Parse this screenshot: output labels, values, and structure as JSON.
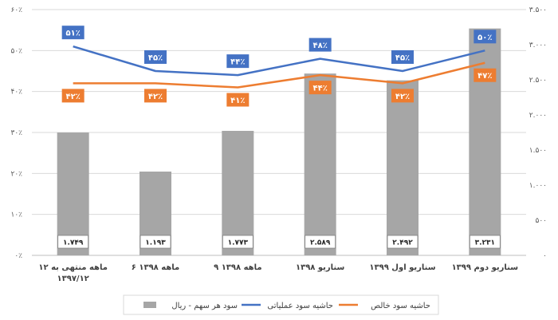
{
  "chart_data": {
    "type": "bar",
    "title": "",
    "categories": [
      "۱۲ ماهه منتهی به ۱۳۹۷/۱۲",
      "۶ ماهه ۱۳۹۸",
      "۹ ماهه ۱۳۹۸",
      "سناریو ۱۳۹۸",
      "سناریو اول ۱۳۹۹",
      "سناریو دوم ۱۳۹۹"
    ],
    "category_lines": [
      [
        "۱۲ ماهه منتهی به",
        "۱۳۹۷/۱۲"
      ],
      [
        "۶ ماهه ۱۳۹۸"
      ],
      [
        "۹ ماهه ۱۳۹۸"
      ],
      [
        "سناریو ۱۳۹۸"
      ],
      [
        "سناریو اول ۱۳۹۹"
      ],
      [
        "سناریو دوم ۱۳۹۹"
      ]
    ],
    "series": [
      {
        "name": "سود هر سهم - ریال",
        "type": "bar",
        "axis": "right",
        "color": "#a6a6a6",
        "values": [
          1749,
          1193,
          1773,
          2589,
          2492,
          3231
        ],
        "labels": [
          "۱.۷۴۹",
          "۱.۱۹۳",
          "۱.۷۷۳",
          "۲.۵۸۹",
          "۲.۴۹۲",
          "۳.۲۳۱"
        ]
      },
      {
        "name": "حاشیه سود عملیاتی",
        "type": "line",
        "axis": "left",
        "color": "#4472c4",
        "values": [
          51,
          45,
          44,
          48,
          45,
          50
        ],
        "labels": [
          "۵۱٪",
          "۴۵٪",
          "۴۴٪",
          "۴۸٪",
          "۴۵٪",
          "۵۰٪"
        ]
      },
      {
        "name": "حاشیه سود خالص",
        "type": "line",
        "axis": "left",
        "color": "#ed7d31",
        "values": [
          42,
          42,
          41,
          44,
          42,
          47
        ],
        "labels": [
          "۴۲٪",
          "۴۲٪",
          "۴۱٪",
          "۴۴٪",
          "۴۲٪",
          "۴۷٪"
        ]
      }
    ],
    "y_left": {
      "ylim": [
        0,
        60
      ],
      "ticks": [
        0,
        10,
        20,
        30,
        40,
        50,
        60
      ],
      "tick_labels": [
        "۰٪",
        "۱۰٪",
        "۲۰٪",
        "۳۰٪",
        "۴۰٪",
        "۵۰٪",
        "۶۰٪"
      ]
    },
    "y_right": {
      "ylim": [
        0,
        3500
      ],
      "ticks": [
        0,
        500,
        1000,
        1500,
        2000,
        2500,
        3000,
        3500
      ],
      "tick_labels": [
        "۰",
        "۵۰۰",
        "۱.۰۰۰",
        "۱.۵۰۰",
        "۲.۰۰۰",
        "۲.۵۰۰",
        "۳.۰۰۰",
        "۳.۵۰۰"
      ]
    },
    "grid": true,
    "legend_position": "bottom"
  }
}
